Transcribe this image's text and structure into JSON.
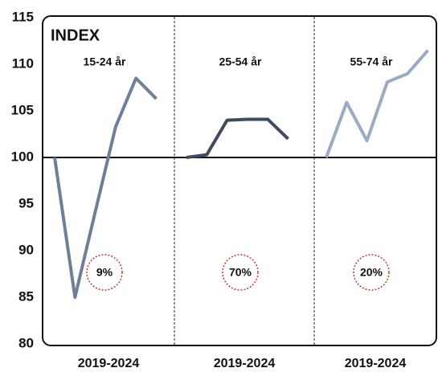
{
  "chart_data": [
    {
      "type": "line",
      "title": "15-24 år",
      "ylabel": "INDEX",
      "xlabel": "2019-2024",
      "annotation": "9%",
      "values": [
        100,
        85,
        94.2,
        103.3,
        108.5,
        106.3
      ],
      "color": "#6f7f99",
      "ylim": [
        80,
        115
      ],
      "yticks": [
        80,
        85,
        90,
        95,
        100,
        105,
        110,
        115
      ],
      "baseline": 100
    },
    {
      "type": "line",
      "title": "25-54 år",
      "xlabel": "2019-2024",
      "annotation": "70%",
      "values": [
        100,
        100.3,
        104,
        104.1,
        104.1,
        102
      ],
      "color": "#3e4a5f",
      "ylim": [
        80,
        115
      ],
      "baseline": 100
    },
    {
      "type": "line",
      "title": "55-74 år",
      "xlabel": "2019-2024",
      "annotation": "20%",
      "values": [
        100,
        105.9,
        101.8,
        108.1,
        109,
        111.5
      ],
      "color": "#9aabc4",
      "ylim": [
        80,
        115
      ],
      "baseline": 100
    }
  ]
}
